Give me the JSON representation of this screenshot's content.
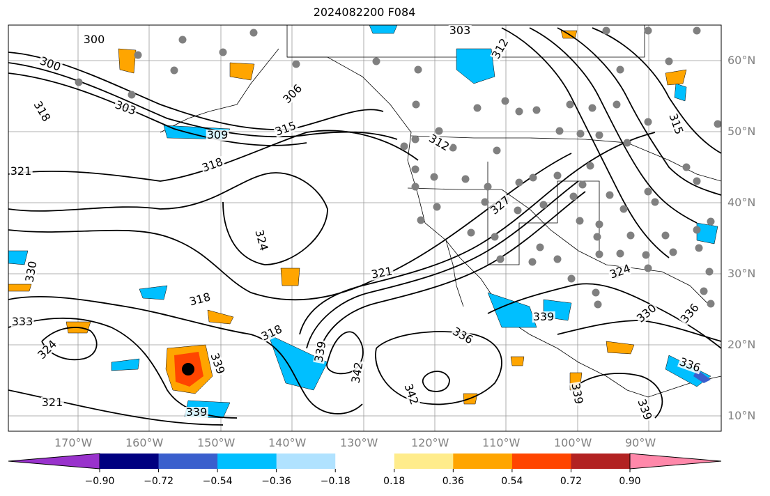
{
  "title": "2024082200 F084",
  "lon_ticks": [
    "170°W",
    "160°W",
    "150°W",
    "140°W",
    "130°W",
    "120°W",
    "110°W",
    "100°W",
    "90°W"
  ],
  "lat_ticks": [
    "60°N",
    "50°N",
    "40°N",
    "30°N",
    "20°N",
    "10°N"
  ],
  "contour_labels": [
    "300",
    "303",
    "306",
    "309",
    "312",
    "315",
    "318",
    "321",
    "324",
    "327",
    "330",
    "333",
    "336",
    "339",
    "342"
  ],
  "colorbar": {
    "ticks": [
      "−0.90",
      "−0.72",
      "−0.54",
      "−0.36",
      "−0.18",
      "0.18",
      "0.36",
      "0.54",
      "0.72",
      "0.90"
    ],
    "colors": [
      "#9932cc",
      "#000080",
      "#3a5fcd",
      "#00bfff",
      "#b0e2ff",
      "#ffffff",
      "#ffec8b",
      "#ffa500",
      "#ff4500",
      "#b22222",
      "#ff88aa"
    ],
    "extend": "both"
  },
  "colors": {
    "positive_fill": "#ffa500",
    "negative_fill": "#00bfff",
    "contour": "#000000",
    "marker": "#808080"
  }
}
